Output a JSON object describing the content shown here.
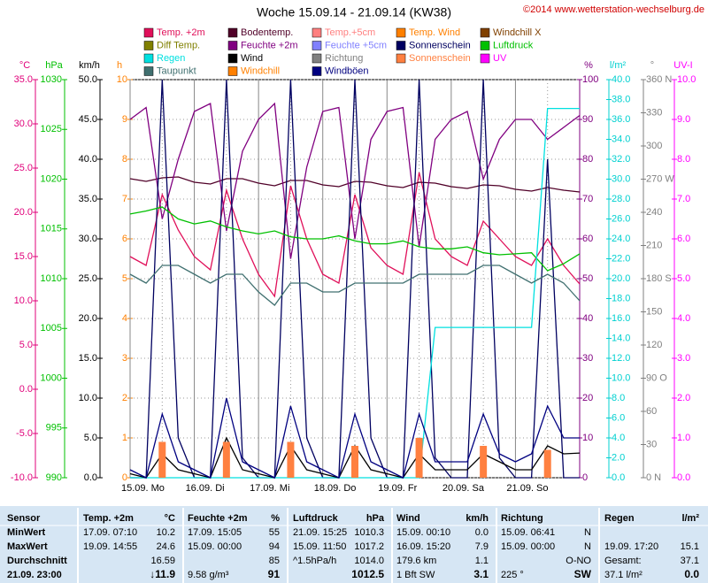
{
  "chart_data": {
    "type": "line",
    "title": "Woche 15.09.14 - 21.09.14 (KW38)",
    "credit": "©2014 www.wetterstation-wechselburg.de",
    "xlim": [
      0,
      168
    ],
    "xticks": [
      {
        "value": 0,
        "label": "15.09. Mo"
      },
      {
        "value": 24,
        "label": "16.09. Di"
      },
      {
        "value": 48,
        "label": "17.09. Mi"
      },
      {
        "value": 72,
        "label": "18.09. Do"
      },
      {
        "value": 96,
        "label": "19.09. Fr"
      },
      {
        "value": 120,
        "label": "20.09. Sa"
      },
      {
        "value": 144,
        "label": "21.09. So"
      }
    ],
    "x": [
      0,
      6,
      12,
      18,
      24,
      30,
      36,
      42,
      48,
      54,
      60,
      66,
      72,
      78,
      84,
      90,
      96,
      102,
      108,
      114,
      120,
      126,
      132,
      138,
      144,
      150,
      156,
      162,
      168
    ],
    "grid": true,
    "axes": [
      {
        "label": "°C",
        "color": "#e0007a",
        "side": "left",
        "lim": [
          -10,
          35
        ],
        "ticks": [
          {
            "value": 35,
            "label": "35.0"
          },
          {
            "value": 30,
            "label": "30.0"
          },
          {
            "value": 25,
            "label": "25.0"
          },
          {
            "value": 20,
            "label": "20.0"
          },
          {
            "value": 15,
            "label": "15.0"
          },
          {
            "value": 10,
            "label": "10.0"
          },
          {
            "value": 5,
            "label": "5.0"
          },
          {
            "value": 0,
            "label": "0.0"
          },
          {
            "value": -5,
            "label": "-5.0"
          },
          {
            "value": -10,
            "label": "-10.0"
          }
        ]
      },
      {
        "label": "hPa",
        "color": "#00c000",
        "side": "left",
        "lim": [
          990,
          1030
        ],
        "ticks": [
          1030,
          1025,
          1020,
          1015,
          1010,
          1005,
          1000,
          995,
          990
        ]
      },
      {
        "label": "km/h",
        "color": "#000000",
        "side": "left",
        "lim": [
          0,
          50
        ],
        "ticks": [
          {
            "value": 50,
            "label": "50.0"
          },
          {
            "value": 45,
            "label": "45.0"
          },
          {
            "value": 40,
            "label": "40.0"
          },
          {
            "value": 35,
            "label": "35.0"
          },
          {
            "value": 30,
            "label": "30.0"
          },
          {
            "value": 25,
            "label": "25.0"
          },
          {
            "value": 20,
            "label": "20.0"
          },
          {
            "value": 15,
            "label": "15.0"
          },
          {
            "value": 10,
            "label": "10.0"
          },
          {
            "value": 5,
            "label": "5.0"
          },
          {
            "value": 0,
            "label": "0.0"
          }
        ]
      },
      {
        "label": "h",
        "color": "#ff8000",
        "side": "left",
        "lim": [
          0,
          10
        ],
        "ticks": [
          10,
          9,
          8,
          7,
          6,
          5,
          4,
          3,
          2,
          1,
          0
        ],
        "grid": true
      },
      {
        "label": "%",
        "color": "#800080",
        "side": "right",
        "lim": [
          0,
          100
        ],
        "ticks": [
          100,
          90,
          80,
          70,
          60,
          50,
          40,
          30,
          20,
          10,
          0
        ]
      },
      {
        "label": "l/m²",
        "color": "#00d0d0",
        "side": "right",
        "lim": [
          0,
          40
        ],
        "ticks": [
          {
            "value": 40,
            "label": "40.0"
          },
          {
            "value": 38,
            "label": "38.0"
          },
          {
            "value": 36,
            "label": "36.0"
          },
          {
            "value": 34,
            "label": "34.0"
          },
          {
            "value": 32,
            "label": "32.0"
          },
          {
            "value": 30,
            "label": "30.0"
          },
          {
            "value": 28,
            "label": "28.0"
          },
          {
            "value": 26,
            "label": "26.0"
          },
          {
            "value": 24,
            "label": "24.0"
          },
          {
            "value": 22,
            "label": "22.0"
          },
          {
            "value": 20,
            "label": "20.0"
          },
          {
            "value": 18,
            "label": "18.0"
          },
          {
            "value": 16,
            "label": "16.0"
          },
          {
            "value": 14,
            "label": "14.0"
          },
          {
            "value": 12,
            "label": "12.0"
          },
          {
            "value": 10,
            "label": "10.0"
          },
          {
            "value": 8,
            "label": "8.0"
          },
          {
            "value": 6,
            "label": "6.0"
          },
          {
            "value": 4,
            "label": "4.0"
          },
          {
            "value": 2,
            "label": "2.0"
          },
          {
            "value": 0,
            "label": "0.0"
          }
        ]
      },
      {
        "label": "°",
        "color": "#808080",
        "side": "right",
        "lim": [
          0,
          360
        ],
        "ticks": [
          {
            "value": 360,
            "label": "360 N"
          },
          330,
          300,
          {
            "value": 270,
            "label": "270 W"
          },
          240,
          210,
          {
            "value": 180,
            "label": "180 S"
          },
          150,
          120,
          {
            "value": 90,
            "label": "90 O"
          },
          60,
          30,
          {
            "value": 0,
            "label": "0 N"
          }
        ]
      },
      {
        "label": "UV-I",
        "color": "#ff00ff",
        "side": "right",
        "lim": [
          0,
          10
        ],
        "ticks": [
          {
            "value": 10,
            "label": "10.0"
          },
          {
            "value": 9,
            "label": "9.0"
          },
          {
            "value": 8,
            "label": "8.0"
          },
          {
            "value": 7,
            "label": "7.0"
          },
          {
            "value": 6,
            "label": "6.0"
          },
          {
            "value": 5,
            "label": "5.0"
          },
          {
            "value": 4,
            "label": "4.0"
          },
          {
            "value": 3,
            "label": "3.0"
          },
          {
            "value": 2,
            "label": "2.0"
          },
          {
            "value": 1,
            "label": "1.0"
          },
          {
            "value": 0,
            "label": "0.0"
          }
        ]
      }
    ],
    "series": [
      {
        "name": "Temp. +2m",
        "color": "#e0105a",
        "axis": "°C",
        "values": [
          15,
          14,
          22,
          18,
          15,
          13.5,
          22.5,
          17,
          13,
          10.5,
          23,
          17,
          13,
          12,
          22,
          16,
          14,
          13,
          24.5,
          17,
          15,
          14,
          19,
          17,
          15,
          14,
          17,
          14,
          11.9
        ]
      },
      {
        "name": "Bodentemp.",
        "color": "#500028",
        "axis": "°C",
        "values": [
          23.8,
          23.5,
          23.9,
          24,
          23.4,
          23.2,
          23.8,
          23.8,
          23.3,
          23,
          23.6,
          23.6,
          23.1,
          22.9,
          23.5,
          23.4,
          23,
          22.8,
          23.4,
          23.3,
          22.9,
          22.7,
          23.1,
          23,
          22.6,
          22.4,
          22.8,
          22.5,
          22.3
        ]
      },
      {
        "name": "Temp.+5cm",
        "color": "#ff8080"
      },
      {
        "name": "Temp. Wind",
        "color": "#ff8000"
      },
      {
        "name": "Windchill X",
        "color": "#804000"
      },
      {
        "name": "Diff Temp.",
        "color": "#808000"
      },
      {
        "name": "Feuchte +2m",
        "color": "#800080",
        "axis": "%",
        "values": [
          90,
          93,
          65,
          80,
          92,
          94,
          62,
          82,
          90,
          94,
          55,
          78,
          92,
          93,
          60,
          85,
          92,
          93,
          58,
          85,
          90,
          92,
          75,
          85,
          90,
          90,
          85,
          88,
          91
        ]
      },
      {
        "name": "Feuchte +5cm",
        "color": "#8080ff"
      },
      {
        "name": "Sonnenschein",
        "color": "#000060",
        "axis": "%",
        "values": [
          0,
          0,
          100,
          10,
          0,
          0,
          100,
          5,
          0,
          0,
          100,
          10,
          0,
          0,
          100,
          10,
          0,
          0,
          100,
          5,
          0,
          0,
          100,
          5,
          0,
          0,
          80,
          0,
          0
        ]
      },
      {
        "name": "Luftdruck",
        "color": "#00c000",
        "axis": "hPa",
        "values": [
          1016.5,
          1016.8,
          1017.2,
          1016,
          1015.5,
          1015.8,
          1015.2,
          1014.8,
          1014.5,
          1014.8,
          1014.2,
          1014,
          1014,
          1014.3,
          1013.8,
          1013.5,
          1013.5,
          1013.8,
          1013.2,
          1013,
          1013,
          1013.2,
          1012.6,
          1012.4,
          1012.5,
          1012.6,
          1010.8,
          1011.5,
          1012.5
        ]
      },
      {
        "name": "Regen",
        "color": "#00e0e0",
        "axis": "l/m²",
        "values": [
          0,
          0,
          0,
          0,
          0,
          0,
          0,
          0,
          0,
          0,
          0,
          0,
          0,
          0,
          0,
          0,
          0,
          0,
          0,
          15.1,
          15.1,
          15.1,
          15.1,
          15.1,
          15.1,
          15.1,
          37.1,
          37.1,
          37.1
        ]
      },
      {
        "name": "Wind",
        "color": "#000000",
        "axis": "km/h",
        "values": [
          0.5,
          0,
          3,
          1,
          0.5,
          0,
          5,
          1,
          0.5,
          0,
          4,
          1,
          0.5,
          0,
          4,
          1,
          0.5,
          0,
          3,
          1,
          1,
          1,
          3,
          2,
          1,
          1,
          4,
          3,
          3.1
        ]
      },
      {
        "name": "Richtung",
        "color": "#808080"
      },
      {
        "name": "Sonnenschein",
        "color": "#ff8040",
        "axis": "h",
        "style": "bar",
        "values": [
          0,
          0,
          0.9,
          0,
          0,
          0,
          0.9,
          0,
          0,
          0,
          0.9,
          0,
          0,
          0,
          0.8,
          0,
          0,
          0,
          1,
          0,
          0,
          0,
          0.8,
          0,
          0,
          0,
          0.7,
          0,
          0
        ]
      },
      {
        "name": "UV",
        "color": "#ff00ff"
      },
      {
        "name": "Taupunkt",
        "color": "#407070",
        "axis": "°C",
        "values": [
          13,
          12,
          14,
          14,
          13,
          12,
          13,
          13,
          11,
          9.5,
          12,
          12,
          11,
          11,
          12,
          12,
          12,
          12,
          13,
          13,
          13,
          13,
          14,
          14,
          13,
          12,
          13,
          12,
          10
        ]
      },
      {
        "name": "Windchill",
        "color": "#ff8000"
      },
      {
        "name": "Windböen",
        "color": "#000080",
        "axis": "km/h",
        "values": [
          1,
          0,
          8,
          2,
          1,
          0,
          10,
          2,
          1,
          0,
          9,
          2,
          1,
          0,
          8,
          2,
          1,
          0,
          8,
          2,
          2,
          2,
          8,
          3,
          2,
          3,
          9,
          5,
          5
        ]
      }
    ]
  },
  "table": {
    "rows": [
      [
        "Sensor",
        "Temp. +2m",
        "°C",
        "Feuchte +2m",
        "%",
        "Luftdruck",
        "hPa",
        "Wind",
        "km/h",
        "Richtung",
        null,
        "Regen",
        "l/m²"
      ],
      [
        "MinWert",
        "17.09. 07:10",
        "10.2",
        "17.09. 15:05",
        "55",
        "21.09. 15:25",
        "1010.3",
        "15.09. 00:10",
        "0.0",
        "15.09. 06:41",
        "N",
        null,
        null
      ],
      [
        "MaxWert",
        "19.09. 14:55",
        "24.6",
        "15.09. 00:00",
        "94",
        "15.09. 11:50",
        "1017.2",
        "16.09. 15:20",
        "7.9",
        "15.09. 00:00",
        "N",
        "19.09. 17:20",
        "15.1"
      ],
      [
        "Durchschnitt",
        null,
        "16.59",
        null,
        "85",
        "^1.5hPa/h",
        "1014.0",
        "179.6 km",
        "1.1",
        null,
        "O-NO",
        "Gesamt:",
        "37.1"
      ],
      [
        "21.09. 23:00",
        null,
        "↓11.9",
        "9.58 g/m³",
        "91",
        null,
        "1012.5",
        "1 Bft SW",
        "3.1",
        "225 °",
        "SW",
        "37.1 l/m²",
        "0.0"
      ]
    ]
  }
}
